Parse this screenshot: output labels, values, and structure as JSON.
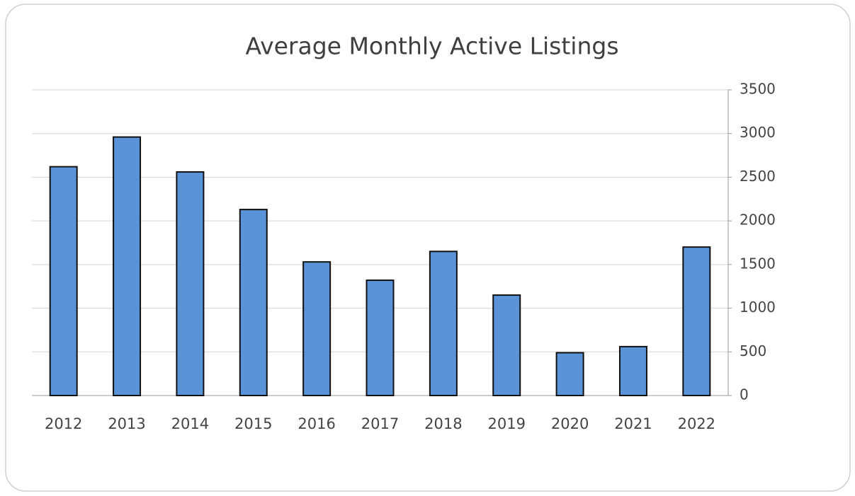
{
  "chart_data": {
    "type": "bar",
    "title": "Average Monthly Active Listings",
    "categories": [
      "2012",
      "2013",
      "2014",
      "2015",
      "2016",
      "2017",
      "2018",
      "2019",
      "2020",
      "2021",
      "2022"
    ],
    "values": [
      2620,
      2960,
      2560,
      2130,
      1530,
      1320,
      1650,
      1150,
      490,
      560,
      1700
    ],
    "color": "#5b93d9",
    "ylim": [
      0,
      3500
    ],
    "yticks": [
      0,
      500,
      1000,
      1500,
      2000,
      2500,
      3000,
      3500
    ],
    "grid": true,
    "y_axis_side": "right"
  }
}
